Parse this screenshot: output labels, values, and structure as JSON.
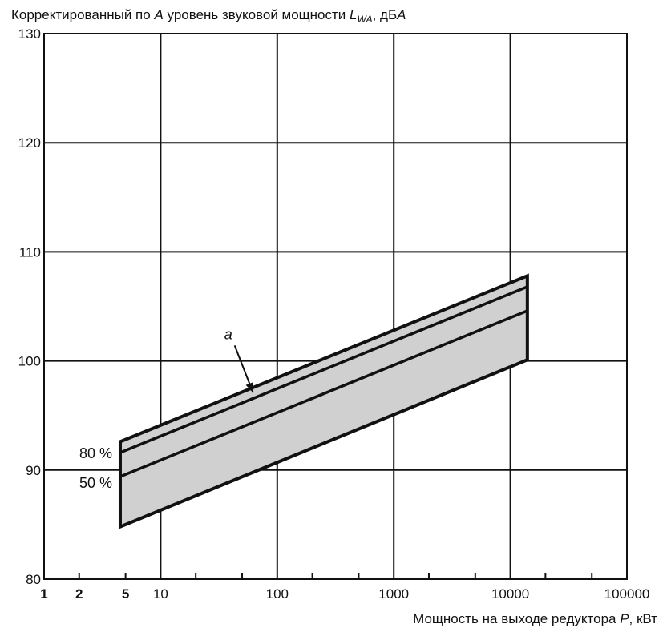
{
  "chart_data": {
    "type": "area",
    "y_title": {
      "pre": "Корректированный по ",
      "a_italic": "A",
      "mid": " уровень звуковой мощности ",
      "L": "L",
      "sub": "WA",
      "post": ", дБ",
      "unit_italic": "A"
    },
    "x_title": {
      "pre": "Мощность на выходе редуктора ",
      "P": "P",
      "post": ", кВт"
    },
    "x_scale": "log",
    "xlim": [
      1,
      100000
    ],
    "ylim": [
      80,
      130
    ],
    "grid": true,
    "x_ticks": [
      {
        "value": 1,
        "label": "1",
        "bold": true
      },
      {
        "value": 2,
        "label": "2",
        "bold": true
      },
      {
        "value": 5,
        "label": "5",
        "bold": true
      },
      {
        "value": 10,
        "label": "10",
        "bold": false
      },
      {
        "value": 100,
        "label": "100",
        "bold": false
      },
      {
        "value": 1000,
        "label": "1000",
        "bold": false
      },
      {
        "value": 10000,
        "label": "10000",
        "bold": false
      },
      {
        "value": 100000,
        "label": "100000",
        "bold": false
      }
    ],
    "y_ticks": [
      {
        "value": 80,
        "label": "80"
      },
      {
        "value": 90,
        "label": "90"
      },
      {
        "value": 100,
        "label": "100"
      },
      {
        "value": 110,
        "label": "110"
      },
      {
        "value": 120,
        "label": "120"
      },
      {
        "value": 130,
        "label": "130"
      }
    ],
    "band": {
      "x": [
        4.5,
        14000
      ],
      "upper": [
        92.6,
        107.8
      ],
      "lower": [
        84.8,
        100.1
      ],
      "color": "#d0d0d0"
    },
    "series": [
      {
        "name": "80 %",
        "x": [
          4.5,
          14000
        ],
        "y": [
          91.6,
          106.8
        ]
      },
      {
        "name": "50 %",
        "x": [
          4.5,
          14000
        ],
        "y": [
          89.4,
          104.6
        ]
      }
    ],
    "annotation": {
      "text": "a",
      "text_at": [
        38,
        102.0
      ],
      "arrow_to": [
        62,
        97.1
      ]
    }
  }
}
